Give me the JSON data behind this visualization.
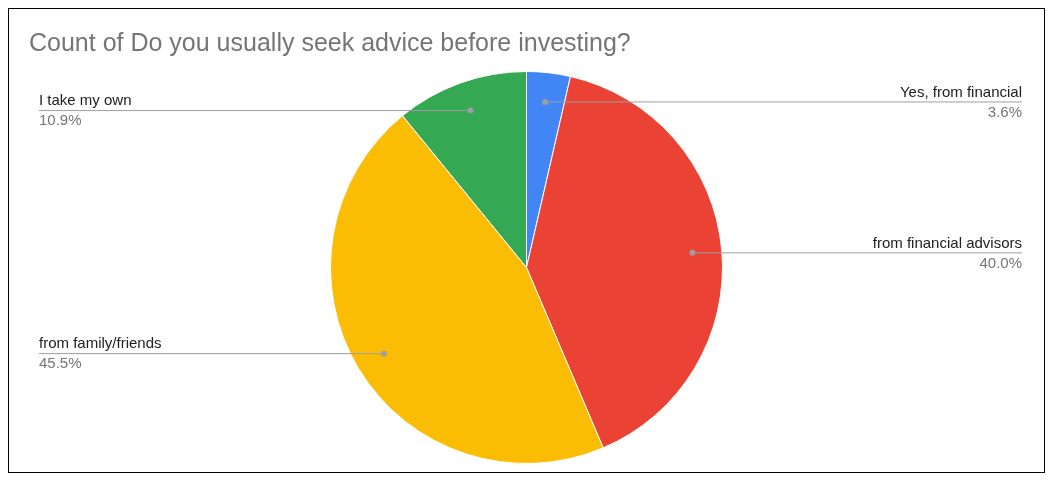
{
  "chart_data": {
    "type": "pie",
    "title": "Count of Do you usually seek advice before investing?",
    "categories": [
      "Yes, from financial",
      "from financial advisors",
      "from family/friends",
      "I take my own"
    ],
    "values": [
      3.6,
      40.0,
      45.5,
      10.9
    ],
    "colors": [
      "#4285f4",
      "#ea4335",
      "#fbbc04",
      "#34a853"
    ],
    "value_labels": [
      "3.6%",
      "40.0%",
      "45.5%",
      "10.9%"
    ],
    "legend": false
  }
}
